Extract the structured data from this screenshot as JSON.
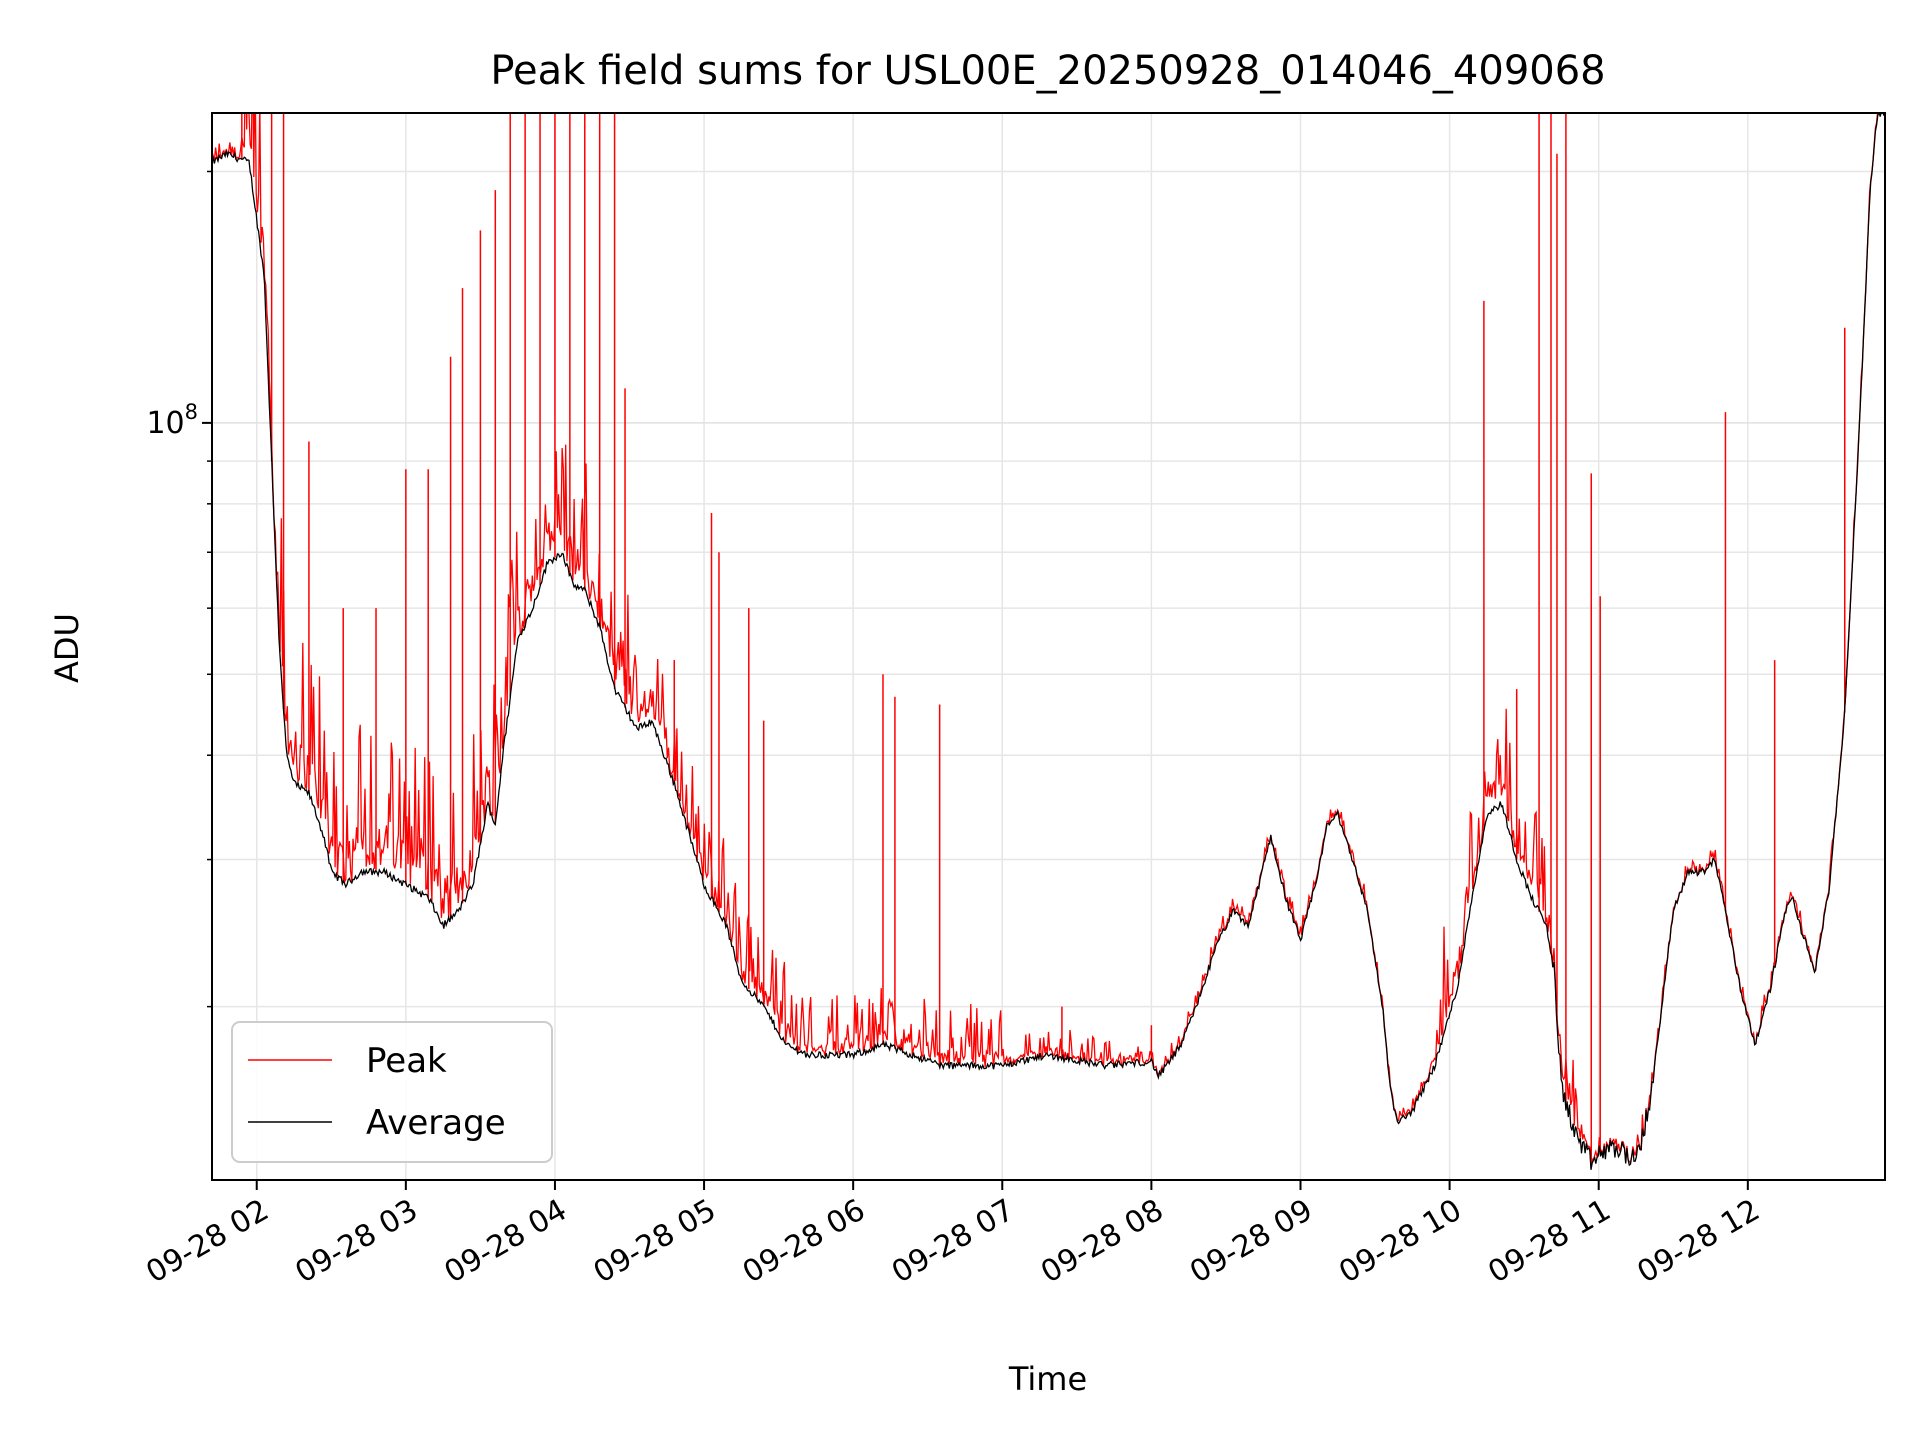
{
  "chart_data": {
    "type": "line",
    "title": "Peak field sums for USL00E_20250928_014046_409068",
    "xlabel": "Time",
    "ylabel": "ADU",
    "yscale": "log",
    "ylim": [
      12400000,
      235000000
    ],
    "xlim_hours": [
      1.7,
      12.92
    ],
    "y_major_tick_label": "10^8",
    "y_major_tick_value": 100000000,
    "y_minor_ticks": [
      20000000,
      30000000,
      40000000,
      50000000,
      60000000,
      70000000,
      80000000,
      90000000,
      200000000
    ],
    "x_ticks": [
      {
        "hour": 2,
        "label": "09-28 02"
      },
      {
        "hour": 3,
        "label": "09-28 03"
      },
      {
        "hour": 4,
        "label": "09-28 04"
      },
      {
        "hour": 5,
        "label": "09-28 05"
      },
      {
        "hour": 6,
        "label": "09-28 06"
      },
      {
        "hour": 7,
        "label": "09-28 07"
      },
      {
        "hour": 8,
        "label": "09-28 08"
      },
      {
        "hour": 9,
        "label": "09-28 09"
      },
      {
        "hour": 10,
        "label": "09-28 10"
      },
      {
        "hour": 11,
        "label": "09-28 11"
      },
      {
        "hour": 12,
        "label": "09-28 12"
      }
    ],
    "grid": true,
    "legend": {
      "position": "lower-left",
      "entries": [
        "Peak",
        "Average"
      ]
    },
    "series": [
      {
        "name": "Average",
        "color": "#000000",
        "points": [
          [
            1.7,
            205000000
          ],
          [
            1.8,
            210000000
          ],
          [
            1.95,
            205000000
          ],
          [
            2.05,
            150000000
          ],
          [
            2.1,
            90000000
          ],
          [
            2.15,
            55000000
          ],
          [
            2.2,
            40000000
          ],
          [
            2.25,
            37000000
          ],
          [
            2.35,
            36000000
          ],
          [
            2.45,
            32000000
          ],
          [
            2.5,
            29000000
          ],
          [
            2.6,
            28000000
          ],
          [
            2.7,
            29000000
          ],
          [
            2.85,
            29000000
          ],
          [
            3.0,
            28000000
          ],
          [
            3.15,
            27000000
          ],
          [
            3.25,
            25000000
          ],
          [
            3.35,
            26000000
          ],
          [
            3.45,
            28000000
          ],
          [
            3.55,
            35000000
          ],
          [
            3.6,
            33000000
          ],
          [
            3.65,
            40000000
          ],
          [
            3.75,
            55000000
          ],
          [
            3.85,
            60000000
          ],
          [
            3.95,
            68000000
          ],
          [
            4.05,
            70000000
          ],
          [
            4.12,
            64000000
          ],
          [
            4.2,
            63000000
          ],
          [
            4.3,
            57000000
          ],
          [
            4.4,
            48000000
          ],
          [
            4.55,
            43000000
          ],
          [
            4.65,
            44000000
          ],
          [
            4.8,
            37000000
          ],
          [
            4.95,
            30000000
          ],
          [
            5.0,
            28000000
          ],
          [
            5.15,
            25000000
          ],
          [
            5.25,
            21500000
          ],
          [
            5.4,
            20000000
          ],
          [
            5.55,
            18000000
          ],
          [
            5.7,
            17500000
          ],
          [
            6.0,
            17500000
          ],
          [
            6.2,
            18000000
          ],
          [
            6.4,
            17500000
          ],
          [
            6.6,
            17000000
          ],
          [
            7.0,
            17000000
          ],
          [
            7.3,
            17500000
          ],
          [
            7.7,
            17000000
          ],
          [
            8.0,
            17200000
          ],
          [
            8.05,
            16500000
          ],
          [
            8.2,
            18000000
          ],
          [
            8.3,
            20000000
          ],
          [
            8.45,
            24000000
          ],
          [
            8.55,
            26000000
          ],
          [
            8.65,
            25000000
          ],
          [
            8.7,
            27000000
          ],
          [
            8.8,
            32000000
          ],
          [
            8.9,
            27000000
          ],
          [
            9.0,
            24000000
          ],
          [
            9.1,
            28000000
          ],
          [
            9.18,
            33000000
          ],
          [
            9.25,
            34000000
          ],
          [
            9.35,
            30000000
          ],
          [
            9.45,
            26000000
          ],
          [
            9.55,
            20000000
          ],
          [
            9.6,
            16000000
          ],
          [
            9.65,
            14500000
          ],
          [
            9.75,
            15000000
          ],
          [
            9.9,
            17000000
          ],
          [
            10.05,
            21000000
          ],
          [
            10.15,
            27000000
          ],
          [
            10.25,
            34000000
          ],
          [
            10.35,
            35000000
          ],
          [
            10.45,
            30000000
          ],
          [
            10.55,
            27000000
          ],
          [
            10.65,
            25000000
          ],
          [
            10.7,
            22000000
          ],
          [
            10.75,
            16000000
          ],
          [
            10.85,
            14000000
          ],
          [
            10.95,
            13000000
          ],
          [
            11.05,
            13500000
          ],
          [
            11.15,
            13500000
          ],
          [
            11.25,
            13000000
          ],
          [
            11.35,
            15500000
          ],
          [
            11.4,
            18500000
          ],
          [
            11.5,
            26000000
          ],
          [
            11.6,
            29000000
          ],
          [
            11.7,
            29000000
          ],
          [
            11.78,
            30000000
          ],
          [
            11.85,
            26000000
          ],
          [
            11.95,
            21000000
          ],
          [
            12.05,
            18000000
          ],
          [
            12.15,
            21000000
          ],
          [
            12.25,
            26000000
          ],
          [
            12.3,
            27000000
          ],
          [
            12.35,
            25000000
          ],
          [
            12.45,
            22000000
          ],
          [
            12.55,
            28000000
          ],
          [
            12.65,
            45000000
          ],
          [
            12.75,
            100000000
          ],
          [
            12.82,
            190000000
          ],
          [
            12.87,
            235000000
          ],
          [
            12.92,
            235000000
          ]
        ]
      }
    ],
    "peak_series": {
      "name": "Peak",
      "color": "#ff0000",
      "noise_above_average": "dense short spikes around the average, strongest 1.9-4.5 h and 9.9-10.9 h",
      "spikes": [
        [
          1.9,
          235000000
        ],
        [
          2.1,
          235000000
        ],
        [
          2.18,
          235000000
        ],
        [
          2.35,
          95000000
        ],
        [
          2.58,
          60000000
        ],
        [
          2.8,
          60000000
        ],
        [
          3.0,
          88000000
        ],
        [
          3.15,
          88000000
        ],
        [
          3.3,
          120000000
        ],
        [
          3.38,
          145000000
        ],
        [
          3.5,
          170000000
        ],
        [
          3.6,
          190000000
        ],
        [
          3.7,
          235000000
        ],
        [
          3.8,
          235000000
        ],
        [
          3.9,
          235000000
        ],
        [
          4.0,
          235000000
        ],
        [
          4.1,
          235000000
        ],
        [
          4.2,
          235000000
        ],
        [
          4.3,
          235000000
        ],
        [
          4.4,
          235000000
        ],
        [
          4.47,
          110000000
        ],
        [
          4.8,
          52000000
        ],
        [
          5.05,
          78000000
        ],
        [
          5.1,
          70000000
        ],
        [
          5.3,
          60000000
        ],
        [
          5.4,
          44000000
        ],
        [
          6.2,
          50000000
        ],
        [
          6.28,
          47000000
        ],
        [
          6.58,
          46000000
        ],
        [
          7.4,
          20000000
        ],
        [
          8.0,
          19000000
        ],
        [
          10.23,
          140000000
        ],
        [
          10.45,
          48000000
        ],
        [
          10.6,
          235000000
        ],
        [
          10.68,
          235000000
        ],
        [
          10.72,
          210000000
        ],
        [
          10.78,
          235000000
        ],
        [
          10.95,
          87000000
        ],
        [
          11.01,
          62000000
        ],
        [
          11.85,
          103000000
        ],
        [
          12.18,
          52000000
        ],
        [
          12.65,
          130000000
        ]
      ]
    }
  }
}
